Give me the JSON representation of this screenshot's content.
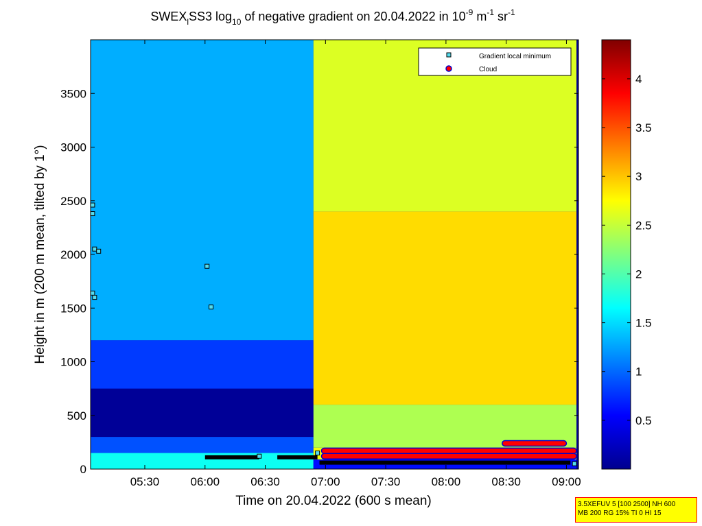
{
  "chart_data": {
    "type": "heatmap",
    "title": {
      "prefix": "SWEX",
      "prefix_sub": "l",
      "middle": "SS3 log",
      "log_sub": "10",
      "main": " of negative gradient on 20.04.2022 in 10",
      "exp1": "-9",
      "unit1": " m",
      "exp2": "-1",
      "unit2": " sr",
      "exp3": "-1"
    },
    "xlabel": "Time on 20.04.2022 (600 s mean)",
    "ylabel": "Height in m (200 m mean, tilted by 1°)",
    "x_ticks": [
      "05:30",
      "06:00",
      "06:30",
      "07:00",
      "07:30",
      "08:00",
      "08:30",
      "09:00"
    ],
    "x_tick_minutes": [
      330,
      360,
      390,
      420,
      450,
      480,
      510,
      540
    ],
    "xlim_minutes": [
      303,
      546
    ],
    "ylim": [
      0,
      4000
    ],
    "y_ticks": [
      0,
      500,
      1000,
      1500,
      2000,
      2500,
      3000,
      3500
    ],
    "colorbar": {
      "range": [
        0,
        4.4
      ],
      "ticks": [
        0.5,
        1,
        1.5,
        2,
        2.5,
        3,
        3.5,
        4
      ],
      "tick_labels": [
        "0.5",
        "1",
        "1.5",
        "2",
        "2.5",
        "3",
        "3.5",
        "4"
      ],
      "colormap": "jet"
    },
    "legend": {
      "position": "top-right",
      "items": [
        {
          "label": "Gradient local minimum",
          "marker": "square",
          "color": "#55ddee"
        },
        {
          "label": "Cloud",
          "marker": "circle",
          "color": "#ff0000"
        }
      ]
    },
    "regions": [
      {
        "t": [
          303,
          414
        ],
        "h": [
          0,
          150
        ],
        "value": 1.7
      },
      {
        "t": [
          303,
          414
        ],
        "h": [
          150,
          300
        ],
        "value": 0.9
      },
      {
        "t": [
          303,
          414
        ],
        "h": [
          300,
          750
        ],
        "value": 0.1
      },
      {
        "t": [
          303,
          414
        ],
        "h": [
          750,
          1200
        ],
        "value": 0.8
      },
      {
        "t": [
          303,
          414
        ],
        "h": [
          1200,
          4000
        ],
        "value": 1.3
      },
      {
        "t": [
          414,
          545
        ],
        "h": [
          0,
          90
        ],
        "value": 0.6
      },
      {
        "t": [
          414,
          545
        ],
        "h": [
          90,
          200
        ],
        "value": 2.7
      },
      {
        "t": [
          414,
          545
        ],
        "h": [
          200,
          600
        ],
        "value": 2.4
      },
      {
        "t": [
          414,
          545
        ],
        "h": [
          600,
          2400
        ],
        "value": 2.9
      },
      {
        "t": [
          414,
          545
        ],
        "h": [
          2400,
          4000
        ],
        "value": 2.6
      }
    ],
    "gradient_local_minimum": [
      {
        "t": 304,
        "h": 2460
      },
      {
        "t": 304,
        "h": 2380
      },
      {
        "t": 305,
        "h": 2050
      },
      {
        "t": 307,
        "h": 2030
      },
      {
        "t": 304,
        "h": 1640
      },
      {
        "t": 305,
        "h": 1600
      },
      {
        "t": 361,
        "h": 1890
      },
      {
        "t": 363,
        "h": 1510
      },
      {
        "t": 387,
        "h": 120
      },
      {
        "t": 416,
        "h": 150
      },
      {
        "t": 544,
        "h": 50
      }
    ],
    "cloud": [
      {
        "t": [
          418,
          545
        ],
        "h": 170
      },
      {
        "t": [
          418,
          545
        ],
        "h": 120
      },
      {
        "t": [
          508,
          540
        ],
        "h": 240
      }
    ],
    "low_bars": [
      {
        "t": [
          360,
          387
        ],
        "h": 110
      },
      {
        "t": [
          396,
          416
        ],
        "h": 110
      },
      {
        "t": [
          417,
          542
        ],
        "h": 60
      }
    ]
  },
  "settings_box": {
    "line1": "3.5XEFUV 5 [100 2500] NH 600",
    "line2": "MB 200 RG 15% TI 0 HI 15"
  }
}
